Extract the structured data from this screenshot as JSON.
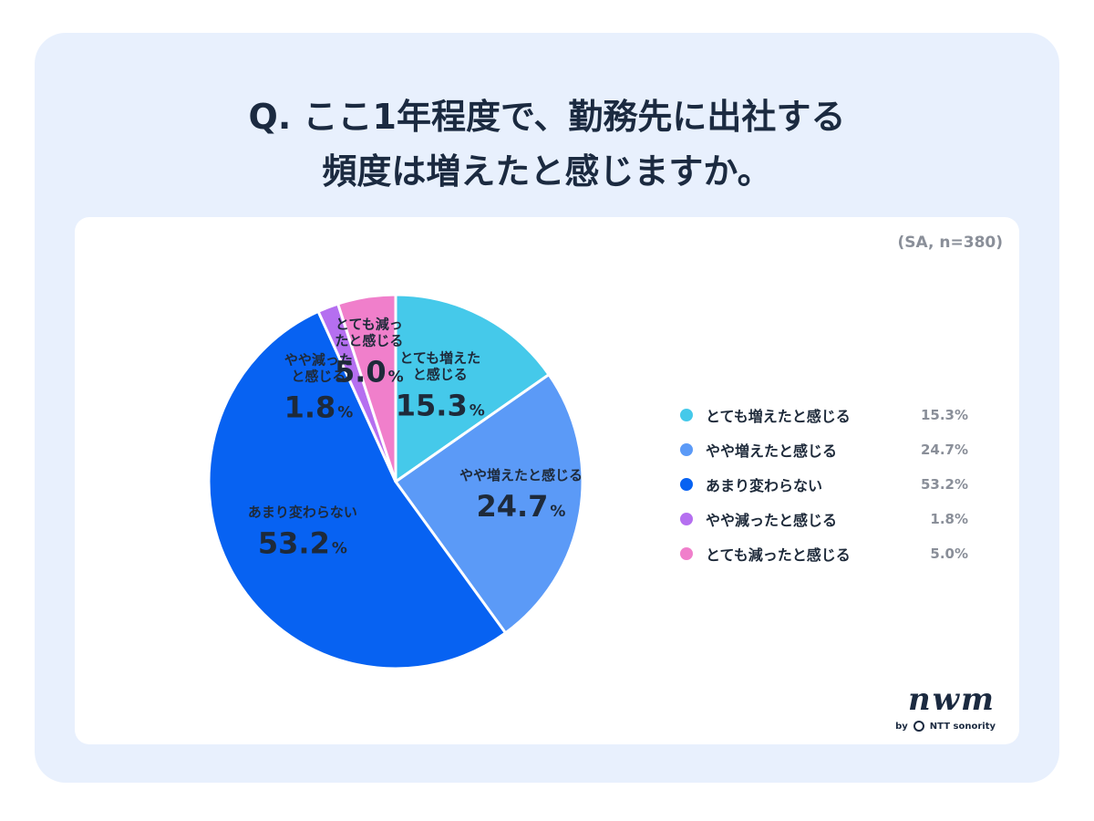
{
  "title": {
    "line1": "Q. ここ1年程度で、勤務先に出社する",
    "line2": "頻度は増えたと感じますか。"
  },
  "note": "(SA, n=380)",
  "logo": {
    "mark": "nwm",
    "by": "by",
    "company": "NTT sonority"
  },
  "chart_data": {
    "type": "pie",
    "unit": "%",
    "slices": [
      {
        "label": "とても増えたと感じる",
        "value": 15.3,
        "color": "#45c9ea",
        "label_lines": [
          "とても増えた",
          "と感じる"
        ]
      },
      {
        "label": "やや増えたと感じる",
        "value": 24.7,
        "color": "#5b9af7",
        "label_lines": [
          "やや増えたと感じる"
        ]
      },
      {
        "label": "あまり変わらない",
        "value": 53.2,
        "color": "#0762f2",
        "label_lines": [
          "あまり変わらない"
        ]
      },
      {
        "label": "やや減ったと感じる",
        "value": 1.8,
        "color": "#b56ff0",
        "label_lines": [
          "やや減った",
          "と感じる"
        ]
      },
      {
        "label": "とても減ったと感じる",
        "value": 5.0,
        "color": "#f07fcb",
        "label_lines": [
          "とても減っ",
          "たと感じる"
        ]
      }
    ],
    "legend_position": "right",
    "start_angle": "top",
    "direction": "clockwise"
  }
}
